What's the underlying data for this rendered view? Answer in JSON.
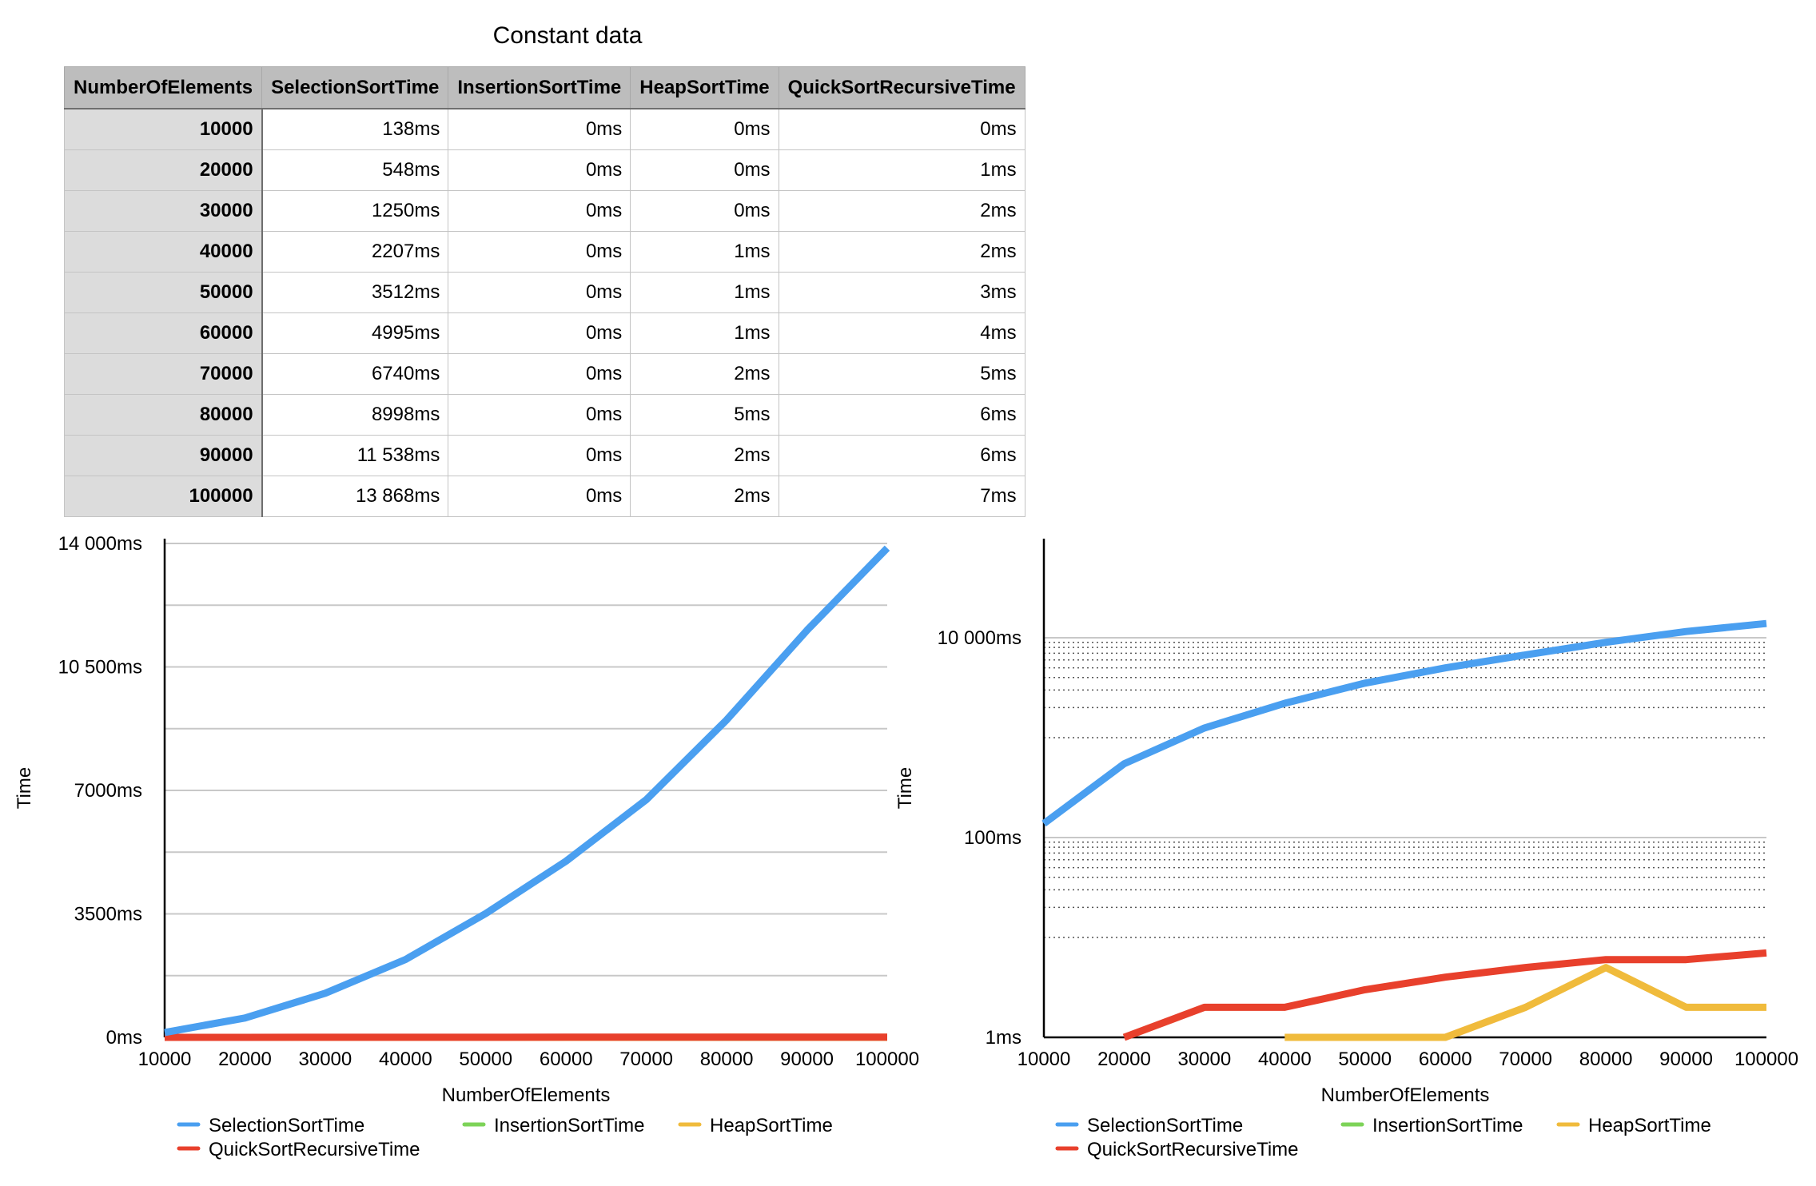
{
  "table": {
    "title": "Constant data",
    "columns": [
      "NumberOfElements",
      "SelectionSortTime",
      "InsertionSortTime",
      "HeapSortTime",
      "QuickSortRecursiveTime"
    ],
    "rows": [
      [
        "10000",
        "138ms",
        "0ms",
        "0ms",
        "0ms"
      ],
      [
        "20000",
        "548ms",
        "0ms",
        "0ms",
        "1ms"
      ],
      [
        "30000",
        "1250ms",
        "0ms",
        "0ms",
        "2ms"
      ],
      [
        "40000",
        "2207ms",
        "0ms",
        "1ms",
        "2ms"
      ],
      [
        "50000",
        "3512ms",
        "0ms",
        "1ms",
        "3ms"
      ],
      [
        "60000",
        "4995ms",
        "0ms",
        "1ms",
        "4ms"
      ],
      [
        "70000",
        "6740ms",
        "0ms",
        "2ms",
        "5ms"
      ],
      [
        "80000",
        "8998ms",
        "0ms",
        "5ms",
        "6ms"
      ],
      [
        "90000",
        "11 538ms",
        "0ms",
        "2ms",
        "6ms"
      ],
      [
        "100000",
        "13 868ms",
        "0ms",
        "2ms",
        "7ms"
      ]
    ]
  },
  "chart_data": [
    {
      "type": "line",
      "scale": "linear",
      "title": "",
      "xlabel": "NumberOfElements",
      "ylabel": "Time",
      "x": [
        10000,
        20000,
        30000,
        40000,
        50000,
        60000,
        70000,
        80000,
        90000,
        100000
      ],
      "xlim": [
        10000,
        100000
      ],
      "ylim": [
        0,
        14000
      ],
      "yticks": [
        0,
        3500,
        7000,
        10500,
        14000
      ],
      "ytick_labels": [
        "0ms",
        "3500ms",
        "7000ms",
        "10 500ms",
        "14 000ms"
      ],
      "grid": true,
      "legend_position": "bottom",
      "series": [
        {
          "name": "SelectionSortTime",
          "color": "#4a9ff0",
          "values": [
            138,
            548,
            1250,
            2207,
            3512,
            4995,
            6740,
            8998,
            11538,
            13868
          ]
        },
        {
          "name": "InsertionSortTime",
          "color": "#7dd358",
          "values": [
            0,
            0,
            0,
            0,
            0,
            0,
            0,
            0,
            0,
            0
          ]
        },
        {
          "name": "HeapSortTime",
          "color": "#f0bb3c",
          "values": [
            0,
            0,
            0,
            1,
            1,
            1,
            2,
            5,
            2,
            2
          ]
        },
        {
          "name": "QuickSortRecursiveTime",
          "color": "#e8402c",
          "values": [
            0,
            1,
            2,
            2,
            3,
            4,
            5,
            6,
            6,
            7
          ]
        }
      ]
    },
    {
      "type": "line",
      "scale": "log",
      "title": "",
      "xlabel": "NumberOfElements",
      "ylabel": "Time",
      "x": [
        10000,
        20000,
        30000,
        40000,
        50000,
        60000,
        70000,
        80000,
        90000,
        100000
      ],
      "xlim": [
        10000,
        100000
      ],
      "ylim": [
        1,
        10000
      ],
      "yticks": [
        1,
        100,
        10000
      ],
      "ytick_labels": [
        "1ms",
        "100ms",
        "10 000ms"
      ],
      "grid": true,
      "legend_position": "bottom",
      "series": [
        {
          "name": "SelectionSortTime",
          "color": "#4a9ff0",
          "values": [
            138,
            548,
            1250,
            2207,
            3512,
            4995,
            6740,
            8998,
            11538,
            13868
          ]
        },
        {
          "name": "InsertionSortTime",
          "color": "#7dd358",
          "values": [
            0,
            0,
            0,
            0,
            0,
            0,
            0,
            0,
            0,
            0
          ]
        },
        {
          "name": "HeapSortTime",
          "color": "#f0bb3c",
          "values": [
            0,
            0,
            0,
            1,
            1,
            1,
            2,
            5,
            2,
            2
          ]
        },
        {
          "name": "QuickSortRecursiveTime",
          "color": "#e8402c",
          "values": [
            0,
            1,
            2,
            2,
            3,
            4,
            5,
            6,
            6,
            7
          ]
        }
      ]
    }
  ]
}
